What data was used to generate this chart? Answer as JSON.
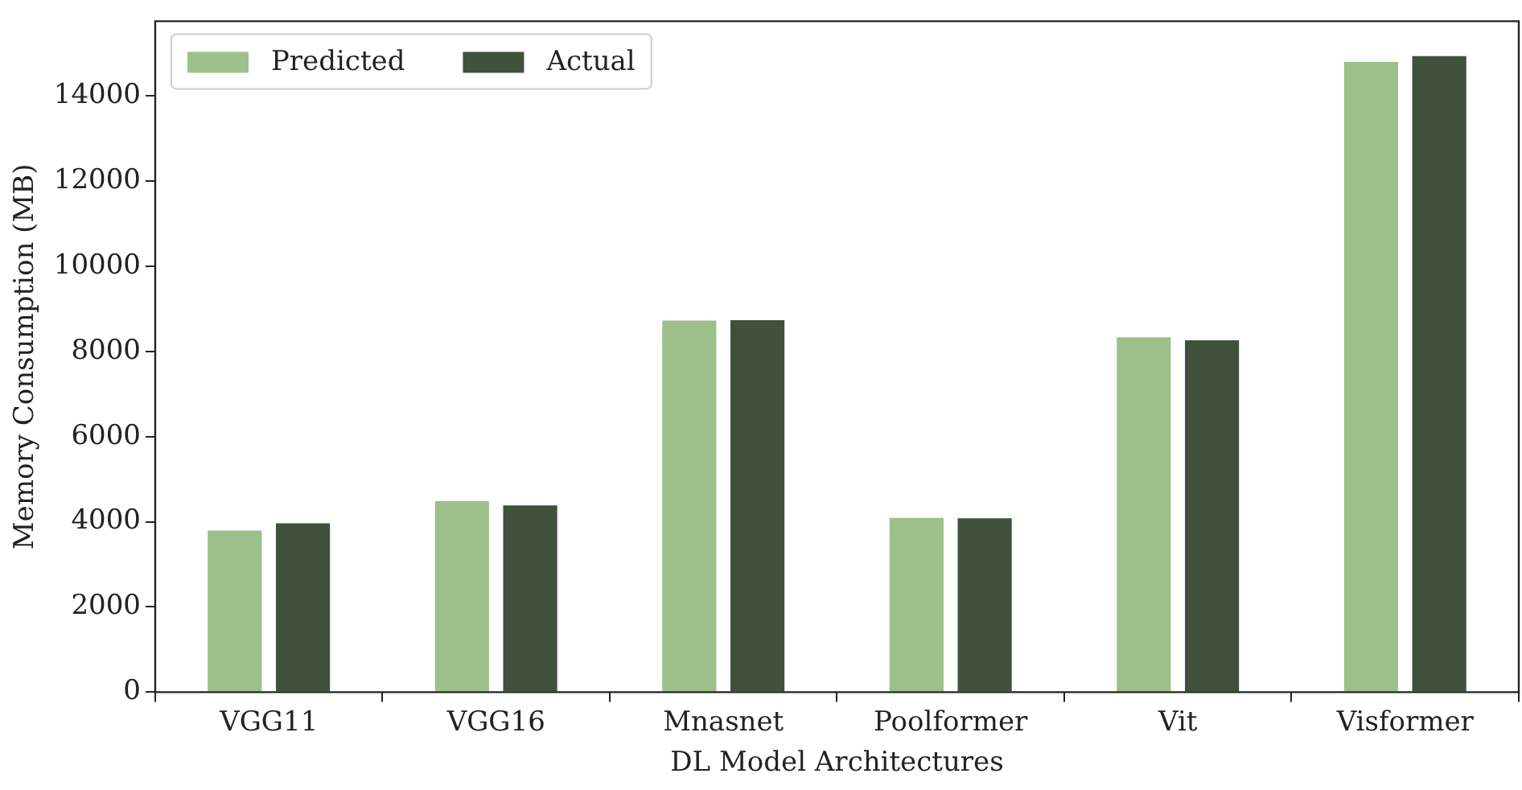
{
  "chart_data": {
    "type": "bar",
    "xlabel": "DL Model Architectures",
    "ylabel": "Memory Consumption (MB)",
    "categories": [
      "VGG11",
      "VGG16",
      "Mnasnet",
      "Poolformer",
      "Vit",
      "Visformer"
    ],
    "series": [
      {
        "name": "Predicted",
        "color": "#9dc08b",
        "values": [
          3830,
          4520,
          8760,
          4130,
          8370,
          14830
        ]
      },
      {
        "name": "Actual",
        "color": "#40513b",
        "values": [
          4000,
          4420,
          8770,
          4120,
          8300,
          14970
        ]
      }
    ],
    "ylim": [
      0,
      15750
    ],
    "yticks": [
      0,
      2000,
      4000,
      6000,
      8000,
      10000,
      12000,
      14000
    ],
    "grid": false,
    "legend": "top left"
  }
}
